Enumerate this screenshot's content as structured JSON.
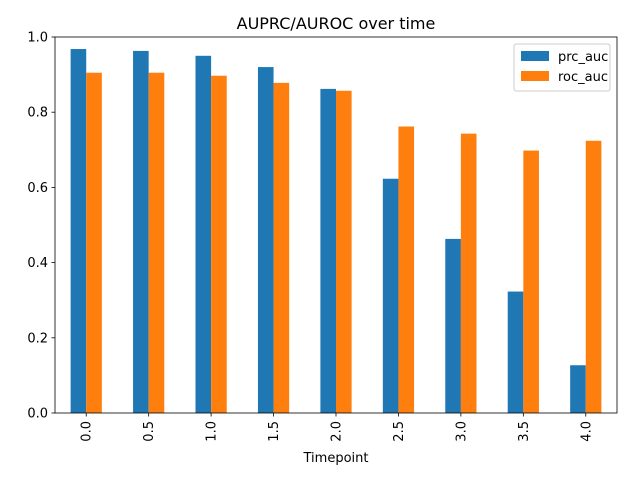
{
  "chart_data": {
    "type": "bar",
    "title": "AUPRC/AUROC over time",
    "xlabel": "Timepoint",
    "ylabel": "",
    "categories": [
      "0.0",
      "0.5",
      "1.0",
      "1.5",
      "2.0",
      "2.5",
      "3.0",
      "3.5",
      "4.0"
    ],
    "series": [
      {
        "name": "prc_auc",
        "color": "#1f77b4",
        "values": [
          0.968,
          0.963,
          0.95,
          0.92,
          0.862,
          0.623,
          0.463,
          0.323,
          0.127
        ]
      },
      {
        "name": "roc_auc",
        "color": "#ff7f0e",
        "values": [
          0.905,
          0.905,
          0.897,
          0.878,
          0.857,
          0.762,
          0.743,
          0.698,
          0.724
        ]
      }
    ],
    "ylim": [
      0,
      1.0
    ],
    "yticks": [
      "0.0",
      "0.2",
      "0.4",
      "0.6",
      "0.8",
      "1.0"
    ],
    "grid": false,
    "legend_position": "top-right"
  }
}
